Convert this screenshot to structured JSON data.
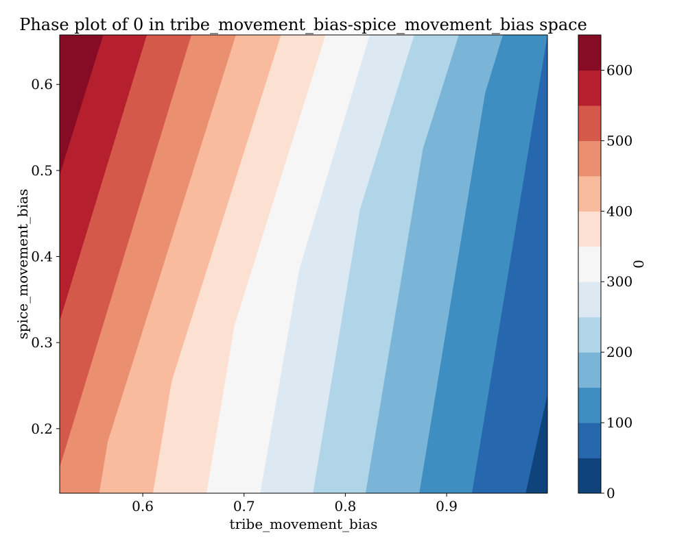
{
  "chart_data": {
    "type": "contour",
    "title": "Phase plot of 0 in tribe_movement_bias-spice_movement_bias space",
    "xlabel": "tribe_movement_bias",
    "ylabel": "spice_movement_bias",
    "xlim": [
      0.518,
      0.9995
    ],
    "ylim": [
      0.125,
      0.6575
    ],
    "xticks": [
      "0.6",
      "0.7",
      "0.8",
      "0.9"
    ],
    "xtick_values": [
      0.6,
      0.7,
      0.8,
      0.9
    ],
    "yticks": [
      "0.2",
      "0.3",
      "0.4",
      "0.5",
      "0.6"
    ],
    "ytick_values": [
      0.2,
      0.3,
      0.4,
      0.5,
      0.6
    ],
    "colorbar": {
      "label": "0",
      "range": [
        0,
        650
      ],
      "ticks": [
        "0",
        "100",
        "200",
        "300",
        "400",
        "500",
        "600"
      ],
      "tick_values": [
        0,
        100,
        200,
        300,
        400,
        500,
        600
      ],
      "levels": [
        0,
        50,
        100,
        150,
        200,
        250,
        300,
        350,
        400,
        450,
        500,
        550,
        600,
        650
      ]
    },
    "level_colors": [
      "#0f437b",
      "#2767ae",
      "#3f8ec1",
      "#7ab5d7",
      "#b1d5e8",
      "#dce9f3",
      "#f6f6f6",
      "#fce0d2",
      "#f8bb9e",
      "#eb8f71",
      "#d4594b",
      "#b51f2e",
      "#860b25"
    ],
    "boundaries": [
      {
        "level": 50,
        "points": [
          [
            0.978,
            0.125
          ],
          [
            0.9995,
            0.24
          ]
        ]
      },
      {
        "level": 100,
        "points": [
          [
            0.925,
            0.125
          ],
          [
            0.9995,
            0.6575
          ]
        ]
      },
      {
        "level": 150,
        "points": [
          [
            0.873,
            0.125
          ],
          [
            0.938,
            0.59
          ],
          [
            0.9555,
            0.6575
          ]
        ]
      },
      {
        "level": 200,
        "points": [
          [
            0.82,
            0.125
          ],
          [
            0.8765,
            0.525
          ],
          [
            0.912,
            0.6575
          ]
        ]
      },
      {
        "level": 250,
        "points": [
          [
            0.768,
            0.125
          ],
          [
            0.8145,
            0.455
          ],
          [
            0.868,
            0.6575
          ]
        ]
      },
      {
        "level": 300,
        "points": [
          [
            0.716,
            0.125
          ],
          [
            0.7545,
            0.385
          ],
          [
            0.824,
            0.6575
          ]
        ]
      },
      {
        "level": 350,
        "points": [
          [
            0.663,
            0.125
          ],
          [
            0.6905,
            0.32
          ],
          [
            0.7805,
            0.6575
          ]
        ]
      },
      {
        "level": 400,
        "points": [
          [
            0.61,
            0.125
          ],
          [
            0.6285,
            0.255
          ],
          [
            0.7365,
            0.6575
          ]
        ]
      },
      {
        "level": 450,
        "points": [
          [
            0.557,
            0.125
          ],
          [
            0.5655,
            0.185
          ],
          [
            0.692,
            0.6575
          ]
        ]
      },
      {
        "level": 500,
        "points": [
          [
            0.518,
            0.155
          ],
          [
            0.648,
            0.6575
          ]
        ]
      },
      {
        "level": 550,
        "points": [
          [
            0.518,
            0.325
          ],
          [
            0.604,
            0.6575
          ]
        ]
      },
      {
        "level": 600,
        "points": [
          [
            0.518,
            0.495
          ],
          [
            0.561,
            0.6575
          ]
        ]
      }
    ]
  }
}
